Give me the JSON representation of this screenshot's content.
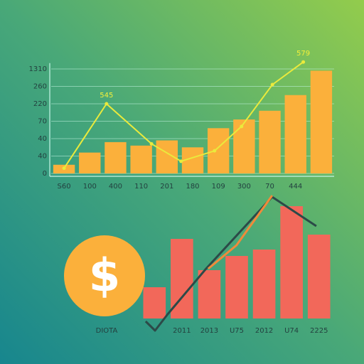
{
  "chart_data": [
    {
      "type": "bar",
      "categories": [
        "S60",
        "100",
        "400",
        "110",
        "201",
        "180",
        "109",
        "300",
        "70",
        "444",
        null
      ],
      "values": [
        0.5,
        1.2,
        1.8,
        1.6,
        1.9,
        1.5,
        2.6,
        3.1,
        3.6,
        4.5,
        5.9
      ],
      "color": "#fbb03b",
      "ylim": [
        0,
        6.5
      ],
      "y_labels": [
        "1310",
        "260",
        "220",
        "70",
        "40",
        "40",
        "0"
      ],
      "grid": true,
      "series": [
        {
          "color": "#eaea3c",
          "x": [
            0,
            1.65,
            3.4,
            4.55,
            5.85,
            6.9,
            8.1,
            9.3
          ],
          "values": [
            0.3,
            4.0,
            1.7,
            0.7,
            1.3,
            2.7,
            5.1,
            6.4
          ]
        }
      ],
      "annotations": [
        "545",
        "579"
      ]
    },
    {
      "type": "bar",
      "categories": [
        null,
        "2011",
        "2013",
        "U75",
        "2012",
        "U74",
        "2225"
      ],
      "values": [
        44,
        112,
        68,
        88,
        97,
        158,
        118
      ],
      "color": "#f2685a",
      "ylim": [
        -20,
        180
      ],
      "label": "DIOTA",
      "icon_text": "$",
      "series": [
        {
          "color": "#2c4a48",
          "x": [
            -0.32,
            0.02,
            0.48,
            1.88,
            4.29,
            5.9
          ],
          "values": [
            -4,
            -17,
            6,
            70,
            171,
            130
          ]
        },
        {
          "color": "#f08a3a",
          "x": [
            1.96,
            2.99,
            4.29
          ],
          "values": [
            70,
            103,
            173
          ]
        }
      ]
    }
  ]
}
